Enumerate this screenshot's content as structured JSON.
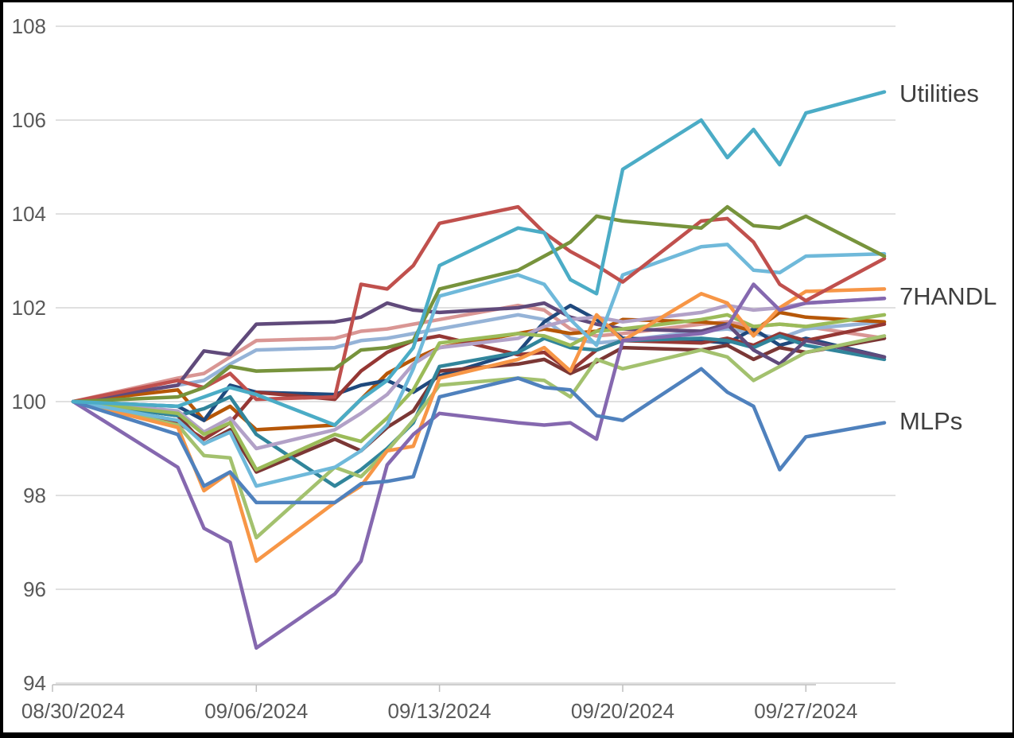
{
  "window": {
    "background": "#FFFFFF",
    "border_color": "#000000",
    "grid_color": "#E0E0E0",
    "axis_color": "#BFBFBF",
    "tick_text_color": "#595959",
    "annotation_text_color": "#3F3F3F"
  },
  "chart_data": {
    "type": "line",
    "title": "",
    "xlabel": "",
    "ylabel": "",
    "grid": "horizontal",
    "legend_position": "right-inline-labels",
    "ylim": [
      94,
      108
    ],
    "y_ticks": [
      94,
      96,
      98,
      100,
      102,
      104,
      106,
      108
    ],
    "x_tick_labels": [
      "08/30/2024",
      "09/06/2024",
      "09/13/2024",
      "09/20/2024",
      "09/27/2024"
    ],
    "x_tick_day_offsets": [
      0,
      7,
      14,
      21,
      28
    ],
    "dates": [
      "08/30/2024",
      "09/03/2024",
      "09/04/2024",
      "09/05/2024",
      "09/06/2024",
      "09/09/2024",
      "09/10/2024",
      "09/11/2024",
      "09/12/2024",
      "09/13/2024",
      "09/16/2024",
      "09/17/2024",
      "09/18/2024",
      "09/19/2024",
      "09/20/2024",
      "09/23/2024",
      "09/24/2024",
      "09/25/2024",
      "09/26/2024",
      "09/27/2024",
      "09/30/2024"
    ],
    "day_offsets": [
      0,
      4,
      5,
      6,
      7,
      10,
      11,
      12,
      13,
      14,
      17,
      18,
      19,
      20,
      21,
      24,
      25,
      26,
      27,
      28,
      31
    ],
    "base_value": 100,
    "series": [
      {
        "id": "series-salmon",
        "label": "",
        "color": "#D99694",
        "values": [
          100,
          100.5,
          100.6,
          100.95,
          101.3,
          101.35,
          101.5,
          101.55,
          101.65,
          101.75,
          102.05,
          101.95,
          101.55,
          101.4,
          101.45,
          101.65,
          101.7,
          101.6,
          101.65,
          101.6,
          101.35
        ]
      },
      {
        "id": "series-steelblue",
        "label": "",
        "color": "#95B3D7",
        "values": [
          100,
          100.35,
          100.45,
          100.8,
          101.1,
          101.15,
          101.3,
          101.35,
          101.45,
          101.55,
          101.85,
          101.75,
          101.35,
          101.25,
          101.3,
          101.5,
          101.55,
          101.45,
          101.35,
          101.55,
          101.7
        ]
      },
      {
        "id": "series-darkorange",
        "label": "",
        "color": "#B65708",
        "values": [
          100,
          100.25,
          99.6,
          99.9,
          99.4,
          99.5,
          100.05,
          100.6,
          100.9,
          101.15,
          101.45,
          101.55,
          101.45,
          101.5,
          101.75,
          101.7,
          101.65,
          101.5,
          101.9,
          101.8,
          101.7
        ]
      },
      {
        "id": "series-navy",
        "label": "",
        "color": "#1F497D",
        "values": [
          100,
          99.9,
          99.6,
          100.35,
          100.2,
          100.15,
          100.35,
          100.45,
          100.2,
          100.55,
          101.05,
          101.7,
          102.05,
          101.75,
          101.35,
          101.3,
          101.25,
          101.55,
          101.2,
          101.35,
          100.95
        ]
      },
      {
        "id": "series-darkred",
        "label": "",
        "color": "#7B3735",
        "values": [
          100,
          99.7,
          99.1,
          99.4,
          98.5,
          99.2,
          98.95,
          99.45,
          99.8,
          100.65,
          100.8,
          100.9,
          100.6,
          100.85,
          101.15,
          101.1,
          101.2,
          100.9,
          101.15,
          101.05,
          101.35
        ]
      },
      {
        "id": "series-maroon",
        "label": "",
        "color": "#953734",
        "values": [
          100,
          99.55,
          99.2,
          99.55,
          100.2,
          100.05,
          100.65,
          101.05,
          101.3,
          101.4,
          101.0,
          101.05,
          100.65,
          101.1,
          101.3,
          101.25,
          101.35,
          101.2,
          101.45,
          101.3,
          101.65
        ]
      },
      {
        "id": "series-darkteal",
        "label": "",
        "color": "#31859B",
        "values": [
          100,
          99.7,
          99.85,
          100.1,
          99.3,
          98.2,
          98.55,
          99.0,
          99.55,
          100.75,
          101.05,
          101.35,
          101.15,
          101.1,
          101.3,
          101.35,
          101.3,
          101.15,
          101.4,
          101.2,
          100.9
        ]
      },
      {
        "id": "series-darkpurple",
        "label": "",
        "color": "#604A7B",
        "values": [
          100,
          100.35,
          101.08,
          101.0,
          101.65,
          101.7,
          101.8,
          102.1,
          101.95,
          101.9,
          102.0,
          102.1,
          101.8,
          101.65,
          101.55,
          101.5,
          101.65,
          101.1,
          100.8,
          101.3,
          100.95
        ]
      },
      {
        "id": "series-lavender",
        "label": "7HANDL",
        "color": "#B2A1C7",
        "values": [
          100,
          99.8,
          99.35,
          99.65,
          99.0,
          99.4,
          99.75,
          100.15,
          100.8,
          101.15,
          101.35,
          101.6,
          101.75,
          101.8,
          101.7,
          101.9,
          102.05,
          101.95,
          102.0,
          102.1,
          102.2
        ]
      },
      {
        "id": "series-lightgreen",
        "label": "",
        "color": "#A3C16E",
        "values": [
          100,
          99.5,
          98.85,
          98.8,
          97.1,
          98.6,
          98.4,
          98.95,
          99.6,
          100.35,
          100.5,
          100.45,
          100.1,
          100.9,
          100.7,
          101.1,
          100.95,
          100.45,
          100.75,
          101.05,
          101.4
        ]
      },
      {
        "id": "series-olivegreen",
        "label": "",
        "color": "#9BBB59",
        "values": [
          100,
          99.75,
          99.3,
          99.55,
          98.55,
          99.3,
          99.15,
          99.65,
          100.25,
          101.25,
          101.45,
          101.4,
          101.2,
          101.5,
          101.55,
          101.75,
          101.85,
          101.6,
          101.65,
          101.6,
          101.85
        ]
      },
      {
        "id": "series-orange",
        "label": "",
        "color": "#F79646",
        "values": [
          100,
          99.45,
          98.1,
          98.5,
          96.6,
          97.85,
          98.2,
          98.95,
          99.05,
          100.5,
          100.9,
          101.15,
          100.65,
          101.85,
          101.3,
          102.3,
          102.1,
          101.4,
          102.0,
          102.35,
          102.4
        ]
      },
      {
        "id": "series-lightaqua",
        "label": "",
        "color": "#6FB9DA",
        "values": [
          100,
          99.6,
          99.1,
          99.35,
          98.2,
          98.6,
          98.95,
          99.5,
          100.7,
          102.25,
          102.7,
          102.5,
          101.75,
          101.2,
          102.7,
          103.3,
          103.35,
          102.8,
          102.75,
          103.1,
          103.15
        ]
      },
      {
        "id": "series-purple",
        "label": "",
        "color": "#8568AF",
        "values": [
          100,
          98.6,
          97.3,
          97.0,
          94.75,
          95.9,
          96.6,
          98.65,
          99.3,
          99.75,
          99.55,
          99.5,
          99.55,
          99.2,
          101.3,
          101.45,
          101.6,
          102.5,
          101.95,
          102.1,
          102.2
        ]
      },
      {
        "id": "series-red",
        "label": "",
        "color": "#C0504D",
        "values": [
          100,
          100.45,
          100.3,
          100.6,
          100.05,
          100.1,
          102.5,
          102.4,
          102.9,
          103.8,
          104.15,
          103.6,
          103.2,
          102.9,
          102.55,
          103.85,
          103.9,
          103.4,
          102.5,
          102.15,
          103.05
        ]
      },
      {
        "id": "series-darkgreen",
        "label": "",
        "color": "#77933C",
        "values": [
          100,
          100.1,
          100.3,
          100.75,
          100.65,
          100.7,
          101.1,
          101.15,
          101.3,
          102.4,
          102.8,
          103.1,
          103.4,
          103.95,
          103.85,
          103.7,
          104.15,
          103.75,
          103.7,
          103.95,
          103.1
        ]
      },
      {
        "id": "series-mlps",
        "label": "MLPs",
        "color": "#4F81BD",
        "values": [
          100,
          99.3,
          98.2,
          98.5,
          97.85,
          97.85,
          98.25,
          98.3,
          98.4,
          100.1,
          100.5,
          100.3,
          100.25,
          99.7,
          99.6,
          100.7,
          100.2,
          99.9,
          98.55,
          99.25,
          99.55
        ]
      },
      {
        "id": "series-utilities",
        "label": "Utilities",
        "color": "#4BACC6",
        "values": [
          100,
          99.9,
          100.1,
          100.3,
          100.15,
          99.5,
          100.05,
          100.45,
          101.15,
          102.9,
          103.7,
          103.6,
          102.6,
          102.3,
          104.95,
          106.0,
          105.2,
          105.8,
          105.05,
          106.15,
          106.6
        ]
      }
    ],
    "annotations": [
      {
        "text": "Utilities",
        "series": "series-utilities",
        "value": 106.6
      },
      {
        "text": "7HANDL",
        "series": "series-lavender",
        "value": 102.2
      },
      {
        "text": "MLPs",
        "series": "series-mlps",
        "value": 99.55
      }
    ]
  }
}
